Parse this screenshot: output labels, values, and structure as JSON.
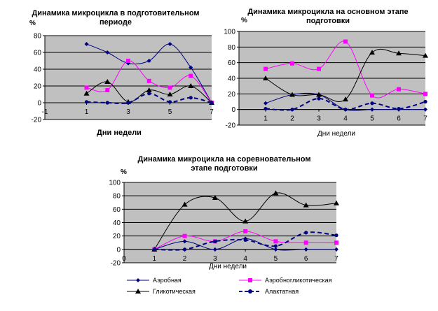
{
  "colors": {
    "aerobic": "#000080",
    "aeroglyco": "#ff00ff",
    "glyco": "#000000",
    "alactic": "#000080",
    "plot_bg": "#c0c0c0",
    "grid": "#000000"
  },
  "legend": {
    "aerobic": "Аэробная",
    "aeroglyco": "Аэробногликотическая",
    "glyco": "Гликотическая",
    "alactic": "Алактатная"
  },
  "chart_data": [
    {
      "type": "line",
      "title_line1": "Динамика микроцикла в подготовительном",
      "title_line2": "периоде",
      "ylabel": "%",
      "xlabel": "Дни недели",
      "xlim": [
        -1,
        7
      ],
      "ylim": [
        -20,
        80
      ],
      "xticks": [
        "-1",
        "1",
        "3",
        "5",
        "7"
      ],
      "yticks": [
        "-20",
        "0",
        "20",
        "40",
        "60",
        "80"
      ],
      "x": [
        1,
        2,
        3,
        4,
        5,
        6,
        7
      ],
      "grid": true,
      "series": [
        {
          "name": "Аэробная",
          "key": "aerobic",
          "values": [
            70,
            60,
            47,
            50,
            70,
            42,
            0
          ]
        },
        {
          "name": "Аэробногликотическая",
          "key": "aeroglyco",
          "values": [
            18,
            15,
            50,
            26,
            18,
            32,
            0
          ]
        },
        {
          "name": "Гликотическая",
          "key": "glyco",
          "values": [
            11,
            25,
            1,
            15,
            10,
            20,
            0
          ]
        },
        {
          "name": "Алактатная",
          "key": "alactic",
          "values": [
            1,
            0,
            0,
            11,
            1,
            6,
            0
          ]
        }
      ]
    },
    {
      "type": "line",
      "title_line1": "Динамика микроцикла на основном этапе",
      "title_line2": "подготовки",
      "ylabel": "%",
      "xlabel": "Дни недели",
      "xlim": [
        0,
        7
      ],
      "ylim": [
        -20,
        100
      ],
      "xticks": [
        "1",
        "2",
        "3",
        "4",
        "5",
        "6",
        "7"
      ],
      "yticks": [
        "-20",
        "0",
        "20",
        "40",
        "60",
        "80",
        "100"
      ],
      "x": [
        1,
        2,
        3,
        4,
        5,
        6,
        7
      ],
      "grid": true,
      "series": [
        {
          "name": "Аэробная",
          "key": "aerobic",
          "values": [
            8,
            19,
            19,
            0,
            0,
            0,
            0
          ]
        },
        {
          "name": "Аэробногликотическая",
          "key": "aeroglyco",
          "values": [
            52,
            59,
            52,
            87,
            18,
            26,
            20
          ]
        },
        {
          "name": "Гликотическая",
          "key": "glyco",
          "values": [
            40,
            19,
            19,
            13,
            73,
            72,
            69
          ]
        },
        {
          "name": "Алактатная",
          "key": "alactic",
          "values": [
            1,
            0,
            14,
            0,
            8,
            1,
            10
          ]
        }
      ]
    },
    {
      "type": "line",
      "title_line1": "Динамика микроцикла на соревновательном",
      "title_line2": "этапе подготовки",
      "ylabel": "%",
      "xlabel": "Дни недели",
      "xlim": [
        0,
        7
      ],
      "ylim": [
        -20,
        100
      ],
      "xticks": [
        "0",
        "1",
        "2",
        "3",
        "4",
        "5",
        "6",
        "7"
      ],
      "yticks": [
        "-20",
        "0",
        "20",
        "40",
        "60",
        "80",
        "100"
      ],
      "x": [
        1,
        2,
        3,
        4,
        5,
        6,
        7
      ],
      "grid": true,
      "series": [
        {
          "name": "Аэробная",
          "key": "aerobic",
          "values": [
            0,
            12,
            0,
            16,
            0,
            0,
            0
          ]
        },
        {
          "name": "Аэробногликотическая",
          "key": "aeroglyco",
          "values": [
            0,
            20,
            12,
            27,
            12,
            10,
            10
          ]
        },
        {
          "name": "Гликотическая",
          "key": "glyco",
          "values": [
            0,
            67,
            77,
            42,
            84,
            66,
            69
          ]
        },
        {
          "name": "Алактатная",
          "key": "alactic",
          "values": [
            0,
            0,
            12,
            14,
            5,
            25,
            21
          ]
        }
      ]
    }
  ]
}
